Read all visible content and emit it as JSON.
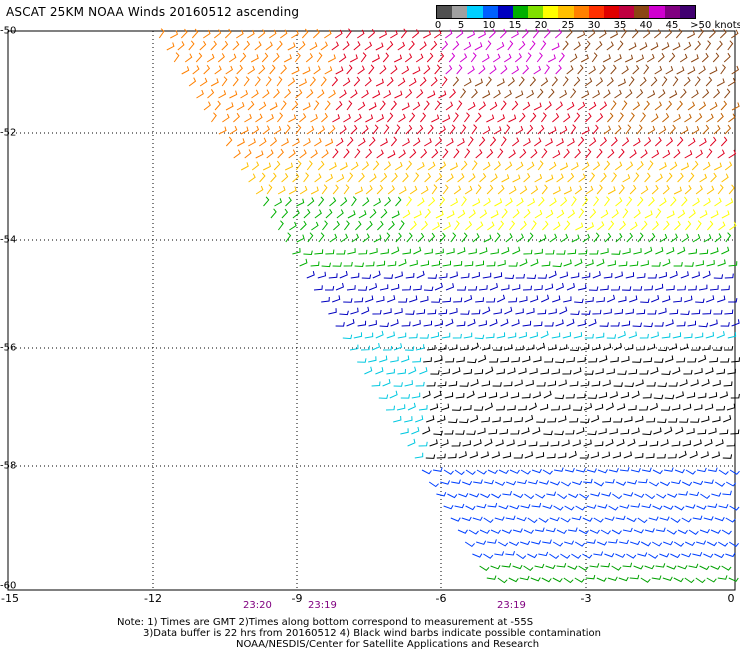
{
  "title": "ASCAT 25KM NOAA Winds 20160512 ascending",
  "colorbar": {
    "labels": [
      "0",
      "5",
      "10",
      "15",
      "20",
      "25",
      "30",
      "35",
      "40",
      "45",
      ">50 knots"
    ],
    "colors": [
      "#505050",
      "#a0a0a0",
      "#00d0ff",
      "#0060ff",
      "#0000c0",
      "#00b000",
      "#80e000",
      "#ffff00",
      "#ffc000",
      "#ff8000",
      "#ff3000",
      "#e00000",
      "#c00040",
      "#8b4513",
      "#d000d0",
      "#800080",
      "#400070"
    ]
  },
  "axes": {
    "x_ticks": [
      "-15",
      "-12",
      "-9",
      "-6",
      "-3",
      "0"
    ],
    "y_ticks": [
      "-50",
      "-52",
      "-54",
      "-56",
      "-58",
      "-60"
    ]
  },
  "times": [
    "23:20",
    "23:19",
    "23:19"
  ],
  "notes": [
    "Note: 1) Times are GMT 2)Times along bottom correspond to measurement at -55S",
    "3)Data buffer is 22 hrs from 20160512 4) Black wind barbs indicate possible contamination",
    "NOAA/NESDIS/Center for Satellite Applications and Research"
  ]
}
